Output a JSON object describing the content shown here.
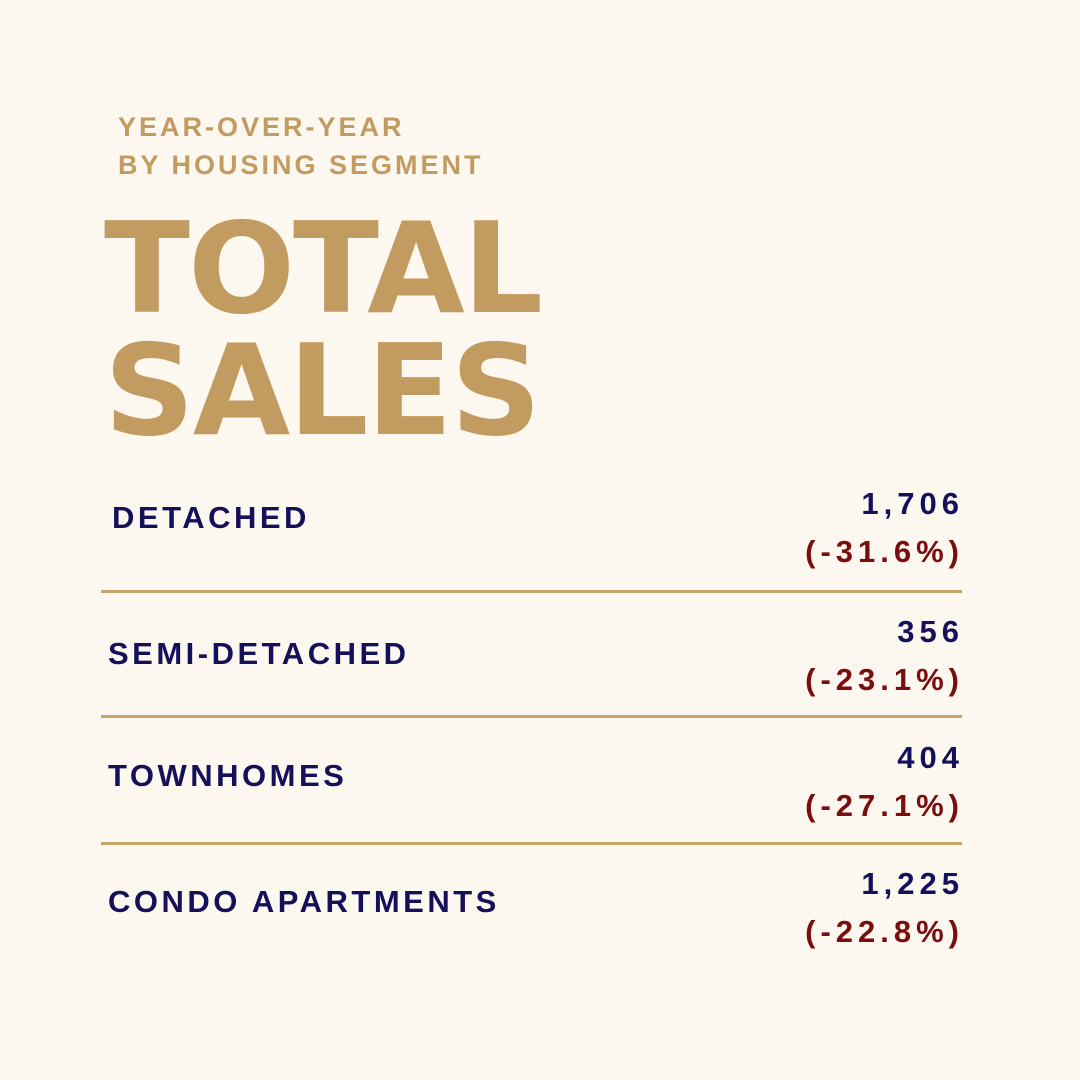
{
  "header": {
    "eyebrow_line1": "YEAR-OVER-YEAR",
    "eyebrow_line2": "BY HOUSING SEGMENT",
    "title_line1": "TOTAL",
    "title_line2": "SALES"
  },
  "segments": [
    {
      "label": "DETACHED",
      "value": "1,706",
      "change": "(-31.6%)"
    },
    {
      "label": "SEMI-DETACHED",
      "value": "356",
      "change": "(-23.1%)"
    },
    {
      "label": "TOWNHOMES",
      "value": "404",
      "change": "(-27.1%)"
    },
    {
      "label": "CONDO APARTMENTS",
      "value": "1,225",
      "change": "(-22.8%)"
    }
  ],
  "colors": {
    "background": "#fcf7ef",
    "gold": "#c29b60",
    "navy": "#15105a",
    "maroon": "#7a0d0d"
  }
}
